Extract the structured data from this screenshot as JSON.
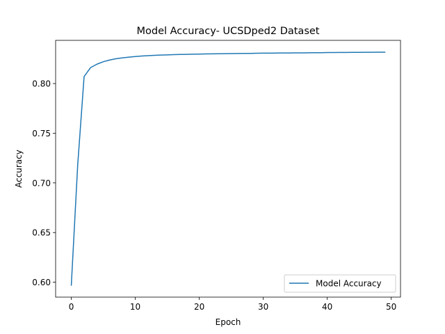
{
  "chart_data": {
    "type": "line",
    "title": "Model Accuracy- UCSDped2 Dataset",
    "xlabel": "Epoch",
    "ylabel": "Accuracy",
    "xlim": [
      -2.45,
      51.45
    ],
    "ylim": [
      0.585,
      0.8435
    ],
    "xticks": [
      0,
      10,
      20,
      30,
      40,
      50
    ],
    "yticks": [
      0.6,
      0.65,
      0.7,
      0.75,
      0.8
    ],
    "xtick_labels": [
      "0",
      "10",
      "20",
      "30",
      "40",
      "50"
    ],
    "ytick_labels": [
      "0.60",
      "0.65",
      "0.70",
      "0.75",
      "0.80"
    ],
    "grid": false,
    "legend_position": "lower right",
    "series": [
      {
        "name": "Model Accuracy",
        "color": "#1f77b4",
        "x": [
          0,
          1,
          2,
          3,
          4,
          5,
          6,
          7,
          8,
          9,
          10,
          11,
          12,
          13,
          14,
          15,
          16,
          17,
          18,
          19,
          20,
          21,
          22,
          23,
          24,
          25,
          26,
          27,
          28,
          29,
          30,
          31,
          32,
          33,
          34,
          35,
          36,
          37,
          38,
          39,
          40,
          41,
          42,
          43,
          44,
          45,
          46,
          47,
          48,
          49
        ],
        "y": [
          0.597,
          0.718,
          0.807,
          0.816,
          0.8195,
          0.822,
          0.8237,
          0.825,
          0.8259,
          0.8266,
          0.8272,
          0.8277,
          0.8281,
          0.8284,
          0.8287,
          0.8289,
          0.8291,
          0.8293,
          0.8294,
          0.8296,
          0.8297,
          0.8298,
          0.8299,
          0.83,
          0.8301,
          0.8302,
          0.8303,
          0.8304,
          0.8304,
          0.8305,
          0.8306,
          0.8306,
          0.8307,
          0.8308,
          0.8308,
          0.8309,
          0.8309,
          0.831,
          0.8311,
          0.8311,
          0.8312,
          0.8312,
          0.8313,
          0.8313,
          0.8314,
          0.8314,
          0.8315,
          0.8315,
          0.8316,
          0.8316
        ]
      }
    ]
  }
}
